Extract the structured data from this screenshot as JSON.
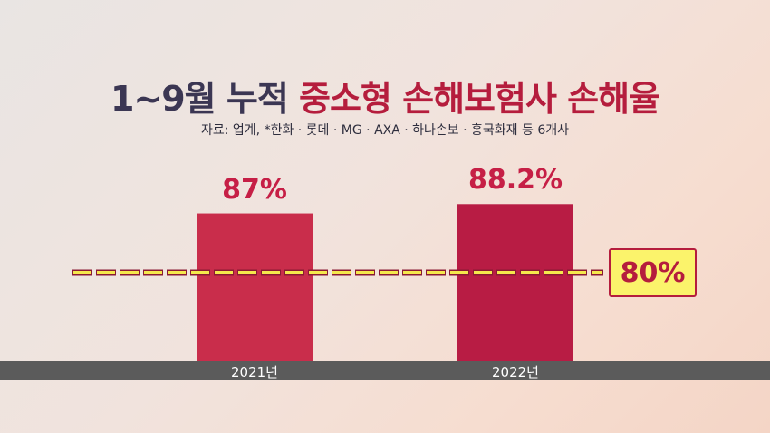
{
  "title": {
    "part1": "1~9월 누적 ",
    "part2": "중소형 손해보험사 손해율"
  },
  "source": "자료: 업계, *한화 · 롯데 · MG · AXA · 하나손보 · 흥국화재 등 6개사",
  "chart_data": {
    "type": "bar",
    "categories": [
      "2021년",
      "2022년"
    ],
    "values": [
      87,
      88.2
    ],
    "data_labels": [
      "87%",
      "88.2%"
    ],
    "reference_line": {
      "value": 80,
      "label": "80%",
      "style": "dashed"
    },
    "bar_colors": [
      "#c92d4b",
      "#b81c44"
    ],
    "colors": {
      "accent": "#b51d3d",
      "ref_line": "#f5e84c",
      "ref_line_border": "#8a1a33",
      "ref_box": "#fbf36b",
      "axis_band": "#5b5b5b"
    }
  }
}
